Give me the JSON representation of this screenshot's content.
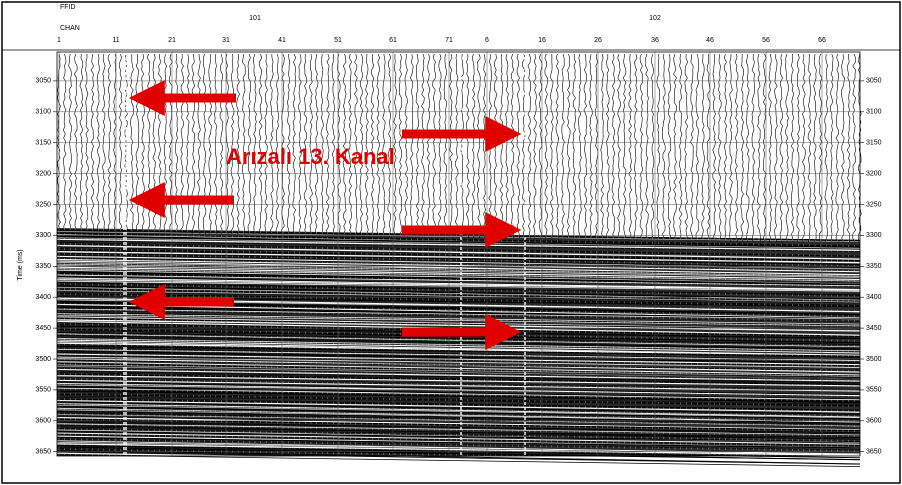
{
  "header": {
    "ffid_label": "FFID",
    "chan_label": "CHAN",
    "ffids": [
      "101",
      "102"
    ],
    "channels": [
      "1",
      "11",
      "21",
      "31",
      "41",
      "51",
      "61",
      "71",
      "6",
      "16",
      "26",
      "36",
      "46",
      "56",
      "66"
    ]
  },
  "time_axis": {
    "label": "Time (ms)",
    "ticks": [
      3050,
      3100,
      3150,
      3200,
      3250,
      3300,
      3350,
      3400,
      3450,
      3500,
      3550,
      3600,
      3650
    ]
  },
  "annotation": "Arızalı 13. Kanal"
}
